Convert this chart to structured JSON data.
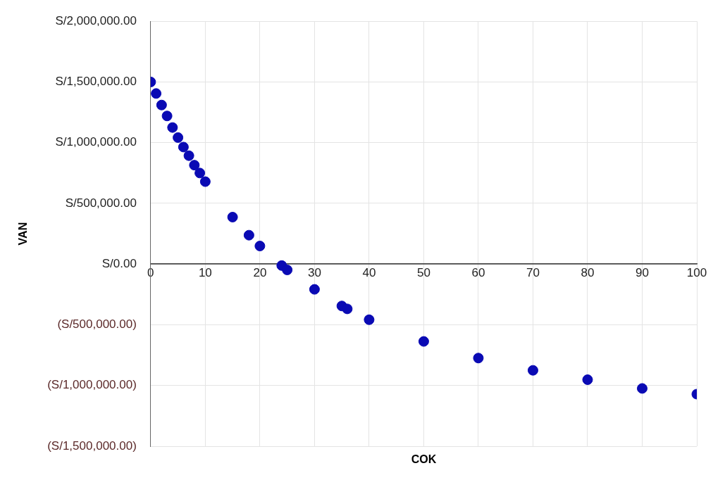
{
  "chart_data": {
    "type": "scatter",
    "xlabel": "COK",
    "ylabel": "VAN",
    "x": [
      0,
      1,
      2,
      3,
      4,
      5,
      6,
      7,
      8,
      9,
      10,
      15,
      18,
      20,
      24,
      25,
      30,
      35,
      36,
      40,
      50,
      60,
      70,
      80,
      90,
      100
    ],
    "series": [
      {
        "color": "#0a0ab4",
        "values": [
          1500000,
          1405000,
          1310000,
          1220000,
          1125000,
          1042000,
          964000,
          893000,
          815000,
          750000,
          679000,
          387000,
          238000,
          149000,
          -12000,
          -48000,
          -208000,
          -345000,
          -369000,
          -458000,
          -637000,
          -774000,
          -875000,
          -952000,
          -1024000,
          -1071000
        ]
      }
    ],
    "xlim": [
      0,
      100
    ],
    "xticks": [
      0,
      10,
      20,
      30,
      40,
      50,
      60,
      70,
      80,
      90,
      100
    ],
    "ylim": [
      -1500000,
      2000000
    ],
    "yticks": [
      {
        "value": -1500000,
        "label": "(S/1,500,000.00)"
      },
      {
        "value": -1000000,
        "label": "(S/1,000,000.00)"
      },
      {
        "value": -500000,
        "label": "(S/500,000.00)"
      },
      {
        "value": 0,
        "label": "S/0.00"
      },
      {
        "value": 500000,
        "label": "S/500,000.00"
      },
      {
        "value": 1000000,
        "label": "S/1,000,000.00"
      },
      {
        "value": 1500000,
        "label": "S/1,500,000.00"
      },
      {
        "value": 2000000,
        "label": "S/2,000,000.00"
      }
    ],
    "grid": true,
    "legend": false,
    "marker": "circle"
  }
}
